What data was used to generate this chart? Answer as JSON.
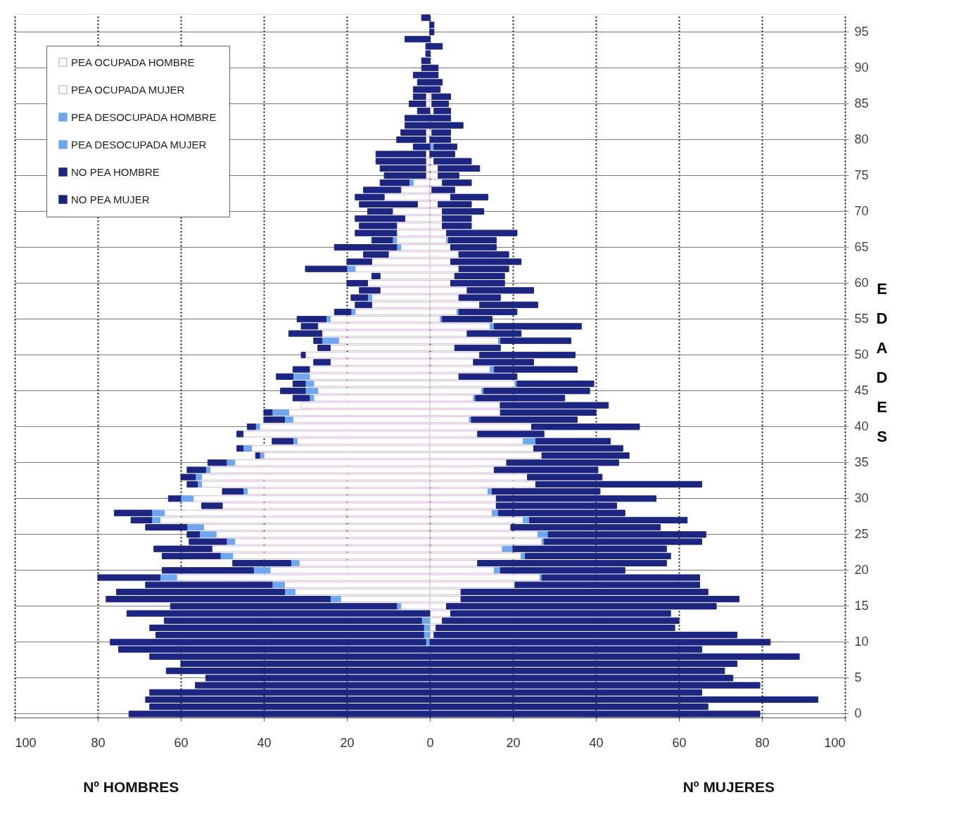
{
  "chart_data": {
    "type": "bar",
    "orientation": "horizontal",
    "stacked": true,
    "ylabel": "EDADES",
    "annotations": [
      "Nº HOMBRES",
      "Nº MUJERES"
    ],
    "categories": [
      null,
      null,
      "95",
      null,
      null,
      null,
      null,
      "90",
      null,
      null,
      null,
      null,
      "85",
      null,
      null,
      null,
      null,
      "80",
      null,
      null,
      null,
      null,
      "75",
      null,
      null,
      null,
      null,
      "70",
      null,
      null,
      null,
      null,
      "65",
      null,
      null,
      null,
      null,
      "60",
      null,
      null,
      null,
      null,
      "55",
      null,
      null,
      null,
      null,
      "50",
      null,
      null,
      null,
      null,
      "45",
      null,
      null,
      null,
      null,
      "40",
      null,
      null,
      null,
      null,
      "35",
      null,
      null,
      null,
      null,
      "30",
      null,
      null,
      null,
      null,
      "25",
      null,
      null,
      null,
      null,
      "20",
      null,
      null,
      null,
      null,
      "15",
      null,
      null,
      null,
      null,
      "10",
      null,
      null,
      null,
      null,
      "5",
      null,
      null,
      null,
      null,
      "0"
    ],
    "series": [
      {
        "name": "PEA OCUPADA HOMBRE",
        "color": "#ffffff",
        "values": [
          0,
          0,
          0,
          0,
          0,
          0,
          0,
          0,
          0,
          0,
          0,
          -1,
          -1,
          0,
          0,
          0,
          -1,
          -1,
          0,
          -1,
          -1,
          -1,
          -1,
          -4,
          -7,
          -11,
          -3,
          -9,
          -6,
          -8,
          -8,
          -8,
          -7,
          -10,
          -14,
          -18,
          -12,
          -15,
          -12,
          -14,
          -14,
          -18,
          -24,
          -27,
          -26,
          -22,
          -24,
          -30,
          -24,
          -29,
          -29,
          -28,
          -27,
          -28,
          -31,
          -34,
          -33,
          -41,
          -45,
          -32,
          -43,
          -40,
          -47,
          -53,
          -55,
          -55,
          -44,
          -57,
          -50,
          -64,
          -65,
          -54.5,
          -51.5,
          -47,
          -52.5,
          -47.5,
          -31.5,
          -38.5,
          -61,
          -35,
          -32.5,
          -21.5,
          -7,
          0,
          0,
          0,
          0,
          0,
          0,
          0,
          0,
          0,
          0,
          0,
          0,
          0,
          0,
          0
        ]
      },
      {
        "name": "PEA OCUPADA MUJER",
        "color": "#ffffff",
        "values": [
          0,
          0,
          0,
          0,
          0,
          0,
          0,
          0,
          0,
          0,
          0,
          0.5,
          0.5,
          1,
          0,
          0,
          0.5,
          0,
          0,
          0,
          1,
          2,
          2,
          3,
          0.5,
          5,
          2,
          3,
          3,
          3,
          4,
          4,
          5,
          7,
          5,
          7,
          6,
          5,
          9,
          7,
          12,
          6.5,
          2.5,
          14.5,
          9,
          16.5,
          6,
          12,
          10.5,
          14.5,
          7,
          20.5,
          12.5,
          10.5,
          17,
          17,
          9.5,
          24.5,
          11.5,
          22.5,
          25,
          27,
          18.5,
          15.5,
          23.5,
          25.5,
          14,
          16,
          16,
          15,
          22.5,
          19.5,
          26,
          27,
          17.5,
          22,
          11.5,
          15.5,
          26.5,
          20.5,
          7.5,
          7.5,
          4,
          5,
          3,
          1.5,
          1,
          0,
          0,
          0,
          0,
          0,
          0,
          0,
          0,
          0,
          0,
          0
        ]
      },
      {
        "name": "PEA DESOCUPADA HOMBRE",
        "color": "#6ea6f0",
        "values": [
          0,
          0,
          0,
          0,
          0,
          0,
          0,
          0,
          0,
          0,
          0,
          0,
          0,
          0,
          0,
          0,
          0,
          0,
          0,
          0,
          0,
          0,
          0,
          -1,
          0,
          0,
          0,
          0,
          0,
          0,
          0,
          -1,
          -1,
          0,
          0,
          -2,
          0,
          0,
          0,
          -1,
          0,
          -1,
          -1,
          0,
          0,
          -4,
          0,
          0,
          0,
          0,
          -4,
          -2,
          -3,
          -1,
          0,
          -4,
          -2,
          -1,
          0,
          -1,
          -2,
          -1,
          -2,
          -1,
          -1.5,
          -1,
          -1,
          -3,
          0,
          -3,
          -2,
          -4,
          -4,
          -2,
          0,
          -3,
          -2,
          -4,
          -4,
          -3,
          -2.5,
          -2.5,
          -1,
          0,
          -2,
          -1.5,
          -1.5,
          -1,
          0,
          0,
          0,
          0,
          0,
          0,
          0,
          0,
          0,
          0
        ]
      },
      {
        "name": "PEA DESOCUPADA MUJER",
        "color": "#6ea6f0",
        "values": [
          0,
          0,
          0,
          0,
          0,
          0,
          0,
          0,
          0,
          0,
          0,
          0,
          0,
          0,
          0,
          0,
          0,
          0,
          1,
          0,
          0,
          0,
          0,
          0,
          0,
          0,
          0,
          0,
          0,
          0,
          0,
          0.5,
          0,
          0,
          0,
          0,
          0,
          0,
          0,
          0,
          0,
          0.5,
          0.5,
          1,
          0,
          0.5,
          0,
          0,
          0,
          1,
          0,
          0.5,
          0.5,
          0.5,
          0,
          0,
          0.5,
          0,
          0,
          3,
          0,
          0,
          0,
          0,
          0,
          0,
          1,
          0,
          0,
          1.5,
          1.5,
          0,
          2.5,
          0.5,
          2.5,
          1,
          0,
          1.5,
          0.5,
          0,
          0,
          0,
          0,
          0,
          0,
          0,
          0,
          0,
          0,
          0,
          0,
          0,
          0,
          0,
          0,
          0,
          0,
          0
        ]
      },
      {
        "name": "NO PEA HOMBRE",
        "color": "#1c2580",
        "values": [
          -2,
          0,
          0,
          -6,
          -1,
          -1,
          -2,
          -2,
          -4,
          -3,
          -4,
          -3,
          -4,
          -3,
          -6,
          -6,
          -6,
          -7,
          -4,
          -12,
          -12,
          -11,
          -10,
          -7,
          -9,
          -7,
          -14,
          -6,
          -12,
          -9,
          -10,
          -5,
          -15,
          -6,
          -6,
          -10,
          -2,
          -5,
          -5,
          -4,
          -4,
          -4,
          -7,
          -4,
          -8,
          -2,
          -3,
          -1,
          -4,
          -4,
          -4,
          -3,
          -6,
          -4,
          0,
          -2,
          -5,
          -2,
          -1.5,
          -5,
          -1.5,
          -1,
          -4.5,
          -4.5,
          -3.5,
          -2.5,
          -5,
          -3,
          -5,
          -9,
          -5,
          -10,
          -3,
          -9,
          -14,
          -14,
          -14,
          -22,
          -15,
          -30.5,
          -40.5,
          -54,
          -54.5,
          -73,
          -62,
          -66,
          -64.5,
          -76,
          -75,
          -67.5,
          -60,
          -63.5,
          -54,
          -56.5,
          -67.5,
          -68.5,
          -67.5,
          -72.5
        ]
      },
      {
        "name": "NO PEA MUJER",
        "color": "#1c2580",
        "values": [
          0,
          1,
          1,
          0,
          3,
          0,
          0,
          2,
          2,
          3,
          2.5,
          4.5,
          4,
          4,
          5,
          8,
          4.5,
          5,
          5.5,
          6,
          9,
          10,
          5,
          7,
          5.5,
          9,
          8,
          10,
          7,
          7,
          17,
          11.5,
          11,
          12,
          17,
          12,
          12,
          13,
          16,
          10,
          14,
          14,
          12,
          21,
          13,
          17,
          11,
          23,
          14.5,
          20,
          14,
          18.5,
          25.5,
          21.5,
          26,
          23,
          25.5,
          26,
          16,
          18,
          21.5,
          21,
          27,
          25,
          18,
          40,
          26,
          38.5,
          29,
          30.5,
          38,
          36,
          38,
          38,
          37,
          35,
          45.5,
          30,
          38,
          44.5,
          59.5,
          67,
          65,
          53,
          57,
          57.5,
          73,
          82,
          65.5,
          89,
          74,
          71,
          73,
          79.5,
          65.5,
          93.5,
          67,
          79.5
        ]
      }
    ],
    "xlim": [
      -100,
      100
    ],
    "xticks": [
      {
        "value": -100,
        "label": "100"
      },
      {
        "value": -80,
        "label": "80"
      },
      {
        "value": -60,
        "label": "60"
      },
      {
        "value": -40,
        "label": "40"
      },
      {
        "value": -20,
        "label": "20"
      },
      0,
      20,
      40,
      60,
      80,
      100
    ],
    "grid": true,
    "legend": "top left"
  }
}
